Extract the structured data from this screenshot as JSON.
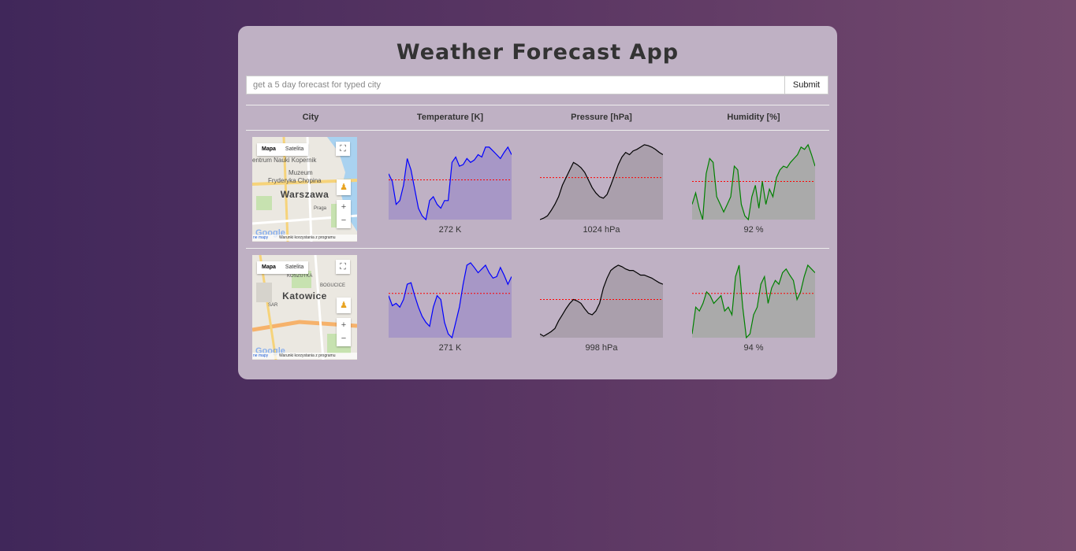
{
  "app": {
    "title": "Weather Forecast App"
  },
  "search": {
    "placeholder": "get a 5 day forecast for typed city",
    "value": "",
    "submit_label": "Submit"
  },
  "table": {
    "headers": [
      "City",
      "Temperature [K]",
      "Pressure [hPa]",
      "Humidity [%]"
    ]
  },
  "map_controls": {
    "map_label": "Mapa",
    "satellite_label": "Satelita",
    "terms": "Warunki korzystania z programu",
    "data_link": "ne mapy",
    "logo": "Google"
  },
  "colors": {
    "temperature": "#0000ff",
    "pressure": "#000000",
    "humidity": "#008000",
    "average_line": "#ff0000"
  },
  "rows": [
    {
      "city": "Warszawa",
      "map_labels": [
        "entrum Nauki Kopernik",
        "Muzeum",
        "Fryderyka Chopina",
        "Praga"
      ],
      "temperature": {
        "label": "272 K",
        "series": [
          0.6,
          0.5,
          0.2,
          0.25,
          0.45,
          0.8,
          0.65,
          0.4,
          0.15,
          0.05,
          0.0,
          0.25,
          0.3,
          0.2,
          0.15,
          0.25,
          0.25,
          0.75,
          0.82,
          0.7,
          0.72,
          0.8,
          0.75,
          0.78,
          0.85,
          0.82,
          0.95,
          0.95,
          0.9,
          0.85,
          0.8,
          0.88,
          0.95,
          0.85
        ],
        "avg": 0.52
      },
      "pressure": {
        "label": "1024 hPa",
        "series": [
          0.0,
          0.02,
          0.05,
          0.12,
          0.2,
          0.3,
          0.45,
          0.55,
          0.65,
          0.75,
          0.72,
          0.68,
          0.62,
          0.52,
          0.42,
          0.35,
          0.3,
          0.28,
          0.33,
          0.45,
          0.58,
          0.72,
          0.82,
          0.88,
          0.85,
          0.9,
          0.92,
          0.95,
          0.98,
          0.97,
          0.95,
          0.92,
          0.88,
          0.85
        ],
        "avg": 0.55
      },
      "humidity": {
        "label": "92 %",
        "series": [
          0.2,
          0.35,
          0.15,
          0.0,
          0.6,
          0.8,
          0.75,
          0.3,
          0.2,
          0.1,
          0.2,
          0.3,
          0.7,
          0.65,
          0.2,
          0.05,
          0.0,
          0.3,
          0.45,
          0.15,
          0.5,
          0.2,
          0.4,
          0.3,
          0.55,
          0.65,
          0.7,
          0.68,
          0.75,
          0.8,
          0.85,
          0.95,
          0.92,
          0.98,
          0.85,
          0.7
        ],
        "avg": 0.5
      }
    },
    {
      "city": "Katowice",
      "map_labels": [
        "KOSZUTKA",
        "BOGUCICE",
        "SAR"
      ],
      "temperature": {
        "label": "271 K",
        "series": [
          0.55,
          0.42,
          0.45,
          0.4,
          0.5,
          0.7,
          0.72,
          0.55,
          0.4,
          0.28,
          0.2,
          0.15,
          0.4,
          0.55,
          0.5,
          0.2,
          0.05,
          0.0,
          0.2,
          0.4,
          0.7,
          0.95,
          0.98,
          0.92,
          0.85,
          0.9,
          0.95,
          0.85,
          0.78,
          0.8,
          0.92,
          0.82,
          0.7,
          0.8
        ],
        "avg": 0.58
      },
      "pressure": {
        "label": "998 hPa",
        "series": [
          0.05,
          0.02,
          0.05,
          0.08,
          0.12,
          0.22,
          0.3,
          0.38,
          0.45,
          0.5,
          0.48,
          0.45,
          0.38,
          0.32,
          0.3,
          0.35,
          0.45,
          0.65,
          0.78,
          0.88,
          0.92,
          0.95,
          0.93,
          0.9,
          0.88,
          0.88,
          0.85,
          0.82,
          0.82,
          0.8,
          0.78,
          0.75,
          0.72,
          0.7
        ],
        "avg": 0.5
      },
      "humidity": {
        "label": "94 %",
        "series": [
          0.05,
          0.4,
          0.35,
          0.45,
          0.6,
          0.55,
          0.45,
          0.5,
          0.55,
          0.35,
          0.4,
          0.3,
          0.8,
          0.95,
          0.4,
          0.0,
          0.05,
          0.3,
          0.4,
          0.7,
          0.8,
          0.45,
          0.65,
          0.75,
          0.7,
          0.85,
          0.9,
          0.82,
          0.75,
          0.5,
          0.6,
          0.8,
          0.95,
          0.9,
          0.85
        ],
        "avg": 0.58
      }
    }
  ]
}
